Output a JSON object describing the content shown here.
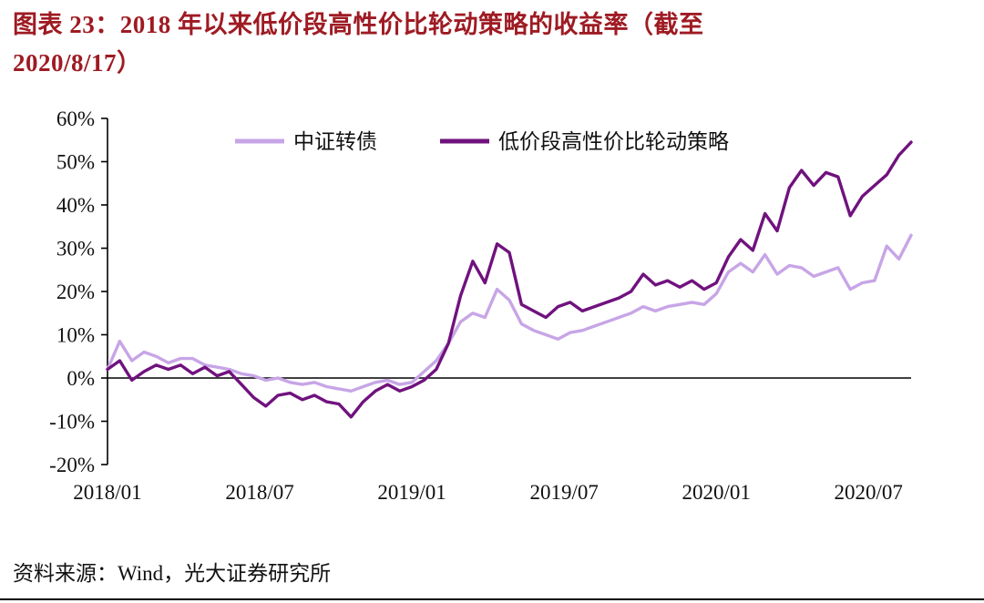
{
  "header": {
    "title_line1": "图表 23：2018 年以来低价段高性价比轮动策略的收益率（截至",
    "title_line2": "2020/8/17）",
    "title_color": "#9E1B23"
  },
  "footer": {
    "source": "资料来源：Wind，光大证券研究所"
  },
  "chart_data": {
    "type": "line",
    "title": "2018 年以来低价段高性价比轮动策略的收益率（截至 2020/8/17）",
    "xlabel": "",
    "ylabel": "",
    "ylim": [
      -20,
      60
    ],
    "y_ticks": [
      60,
      50,
      40,
      30,
      20,
      10,
      0,
      -10,
      -20
    ],
    "y_tick_suffix": "%",
    "grid": false,
    "legend_position": "top-inside",
    "x_start": 2018.0,
    "x_step": 0.04,
    "x_end": 2020.64,
    "x_ticks": [
      {
        "value": 2018.0,
        "label": "2018/01"
      },
      {
        "value": 2018.5,
        "label": "2018/07"
      },
      {
        "value": 2019.0,
        "label": "2019/01"
      },
      {
        "value": 2019.5,
        "label": "2019/07"
      },
      {
        "value": 2020.0,
        "label": "2020/01"
      },
      {
        "value": 2020.5,
        "label": "2020/07"
      }
    ],
    "series": [
      {
        "name": "中证转债",
        "color": "#C7A5E6",
        "values": [
          2,
          8.5,
          4,
          6,
          5,
          3.5,
          4.5,
          4.5,
          3,
          2.5,
          2,
          1,
          0.5,
          -0.5,
          0,
          -1,
          -1.5,
          -1,
          -2,
          -2.5,
          -3,
          -2,
          -1,
          -0.5,
          -1.5,
          -1,
          1.5,
          4,
          8,
          13,
          15,
          14,
          20.5,
          18,
          12.5,
          11,
          10,
          9,
          10.5,
          11,
          12,
          13,
          14,
          15,
          16.5,
          15.5,
          16.5,
          17,
          17.5,
          17,
          19.5,
          24.5,
          26.5,
          24.5,
          28.5,
          24,
          26,
          25.5,
          23.5,
          24.5,
          25.5,
          20.5,
          22,
          22.5,
          30.5,
          27.5,
          33
        ]
      },
      {
        "name": "低价段高性价比轮动策略",
        "color": "#70127E",
        "values": [
          2,
          4,
          -0.5,
          1.5,
          3,
          2,
          3,
          1,
          2.5,
          0.5,
          1.5,
          -1.5,
          -4.5,
          -6.5,
          -4,
          -3.5,
          -5,
          -4,
          -5.5,
          -6,
          -9,
          -5.5,
          -3,
          -1.5,
          -3,
          -2,
          -0.5,
          2,
          8,
          19,
          27,
          22,
          31,
          29,
          17,
          15.5,
          14,
          16.5,
          17.5,
          15.5,
          16.5,
          17.5,
          18.5,
          20,
          24,
          21.5,
          22.5,
          21,
          22.5,
          20.5,
          22,
          28,
          32,
          29.5,
          38,
          34,
          44,
          48,
          44.5,
          47.5,
          46.5,
          37.5,
          42,
          44.5,
          47,
          51.5,
          54.5
        ]
      }
    ]
  }
}
